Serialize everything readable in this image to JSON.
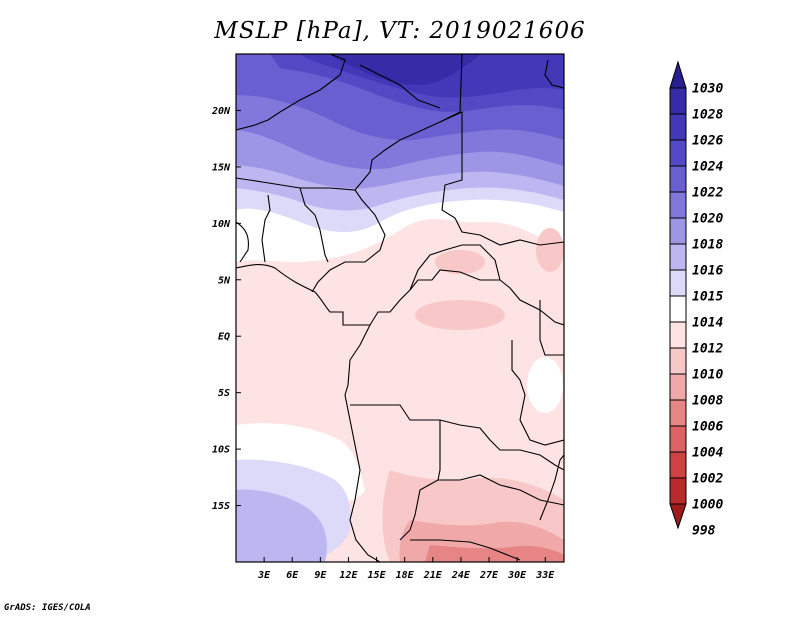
{
  "title": "MSLP [hPa], VT: 2019021606",
  "credit": "GrADS: IGES/COLA",
  "map": {
    "lat_labels": [
      "20N",
      "15N",
      "10N",
      "5N",
      "EQ",
      "5S",
      "10S",
      "15S"
    ],
    "lat_values": [
      20,
      15,
      10,
      5,
      0,
      -5,
      -10,
      -15
    ],
    "lon_labels": [
      "3E",
      "6E",
      "9E",
      "12E",
      "15E",
      "18E",
      "21E",
      "24E",
      "27E",
      "30E",
      "33E"
    ],
    "lon_values": [
      3,
      6,
      9,
      12,
      15,
      18,
      21,
      24,
      27,
      30,
      33
    ],
    "lon_range": [
      0,
      35
    ],
    "lat_range": [
      -20,
      25
    ]
  },
  "colorbar": {
    "levels": [
      "1030",
      "1028",
      "1026",
      "1024",
      "1022",
      "1020",
      "1018",
      "1016",
      "1015",
      "1014",
      "1012",
      "1010",
      "1008",
      "1006",
      "1004",
      "1002",
      "1000",
      "998"
    ],
    "colors": [
      "#2a1f8f",
      "#362ca8",
      "#4338b8",
      "#5449c4",
      "#6a5fd0",
      "#8278dc",
      "#9d95e6",
      "#bcb7f0",
      "#dcdaf8",
      "#ffffff",
      "#fde3e3",
      "#f8c8c8",
      "#f0a8a8",
      "#e78585",
      "#dd6363",
      "#cf4242",
      "#bb2a2a",
      "#9e1b1b"
    ]
  }
}
